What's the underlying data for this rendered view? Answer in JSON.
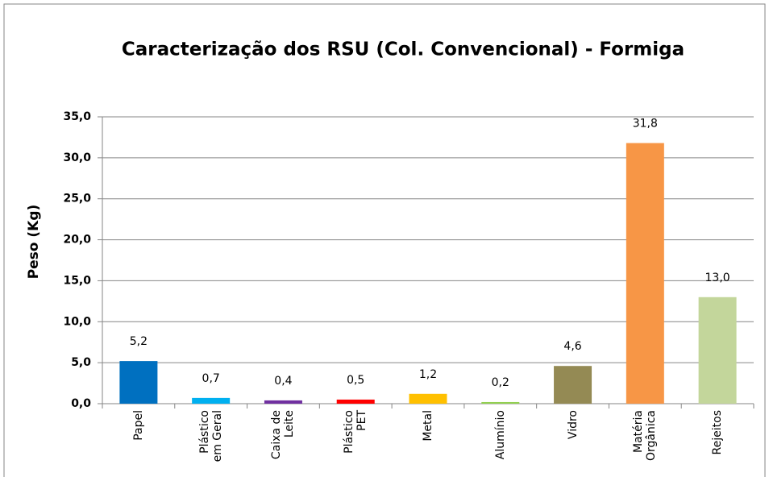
{
  "chart_data": {
    "type": "bar",
    "title": "Caracterização dos RSU (Col. Convencional) - Formiga",
    "y_label": "Peso (Kg)",
    "categories": [
      "Papel",
      "Plástico\nem Geral",
      "Caixa de\nLeite",
      "Plástico\nPET",
      "Metal",
      "Alumínio",
      "Vidro",
      "Matéria\nOrgânica",
      "Rejeitos"
    ],
    "values": [
      5.2,
      0.7,
      0.4,
      0.5,
      1.2,
      0.2,
      4.6,
      31.8,
      13.0
    ],
    "value_labels": [
      "5,2",
      "0,7",
      "0,4",
      "0,5",
      "1,2",
      "0,2",
      "4,6",
      "31,8",
      "13,0"
    ],
    "colors": [
      "#0070c0",
      "#00b0f0",
      "#7030a0",
      "#ff0000",
      "#ffc000",
      "#92d050",
      "#948a54",
      "#f79646",
      "#c3d69b"
    ],
    "ylim": [
      0,
      35
    ],
    "yticks": [
      {
        "value": 0,
        "label": "0,0"
      },
      {
        "value": 5,
        "label": "5,0"
      },
      {
        "value": 10,
        "label": "10,0"
      },
      {
        "value": 15,
        "label": "15,0"
      },
      {
        "value": 20,
        "label": "20,0"
      },
      {
        "value": 25,
        "label": "25,0"
      },
      {
        "value": 30,
        "label": "30,0"
      },
      {
        "value": 35,
        "label": "35,0"
      }
    ],
    "grid": true
  }
}
